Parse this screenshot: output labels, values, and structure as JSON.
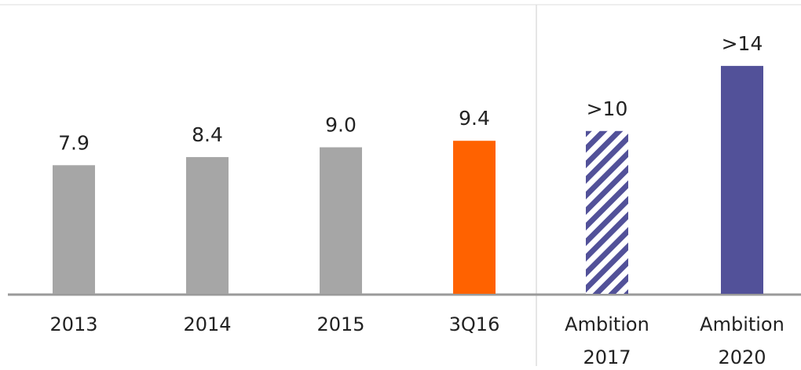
{
  "chart_data": {
    "type": "bar",
    "categories": [
      "2013",
      "2014",
      "2015",
      "3Q16",
      "Ambition 2017",
      "Ambition 2020"
    ],
    "values": [
      7.9,
      8.4,
      9.0,
      9.4,
      10,
      14
    ],
    "value_labels": [
      "7.9",
      "8.4",
      "9.0",
      "9.4",
      ">10",
      ">14"
    ],
    "colors": [
      "#a6a6a6",
      "#a6a6a6",
      "#a6a6a6",
      "#ff6200",
      "#525199",
      "#525199"
    ],
    "hatched": [
      false,
      false,
      false,
      false,
      true,
      false
    ],
    "ylim": [
      0,
      18
    ]
  }
}
